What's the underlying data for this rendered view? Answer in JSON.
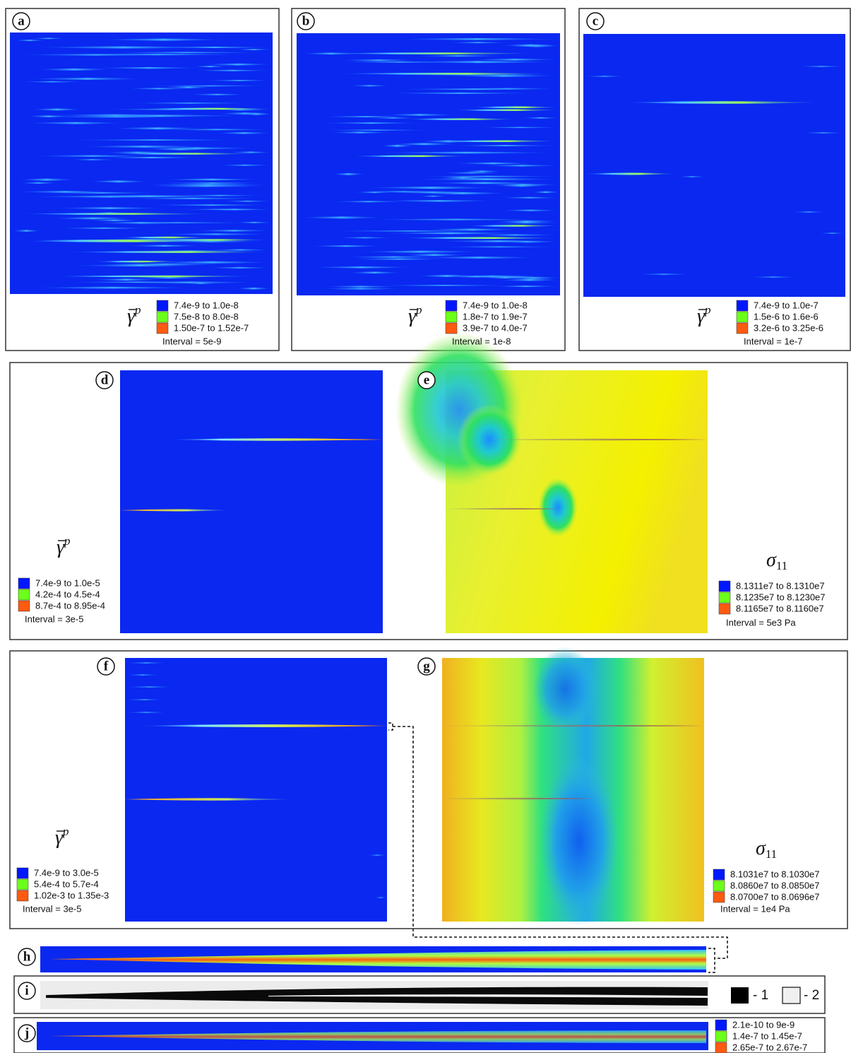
{
  "panels": [
    {
      "label": "a",
      "legend": {
        "symbol": "γ",
        "superscript": "p",
        "entries": [
          "7.4e-9 to 1.0e-8",
          "7.5e-8 to 8.0e-8",
          "1.50e-7 to 1.52e-7"
        ],
        "interval": "Interval = 5e-9"
      }
    },
    {
      "label": "b",
      "legend": {
        "symbol": "γ",
        "superscript": "p",
        "entries": [
          "7.4e-9 to 1.0e-8",
          "1.8e-7 to 1.9e-7",
          "3.9e-7 to 4.0e-7"
        ],
        "interval": "Interval = 1e-8"
      }
    },
    {
      "label": "c",
      "legend": {
        "symbol": "γ",
        "superscript": "p",
        "entries": [
          "7.4e-9 to 1.0e-7",
          "1.5e-6 to 1.6e-6",
          "3.2e-6 to 3.25e-6"
        ],
        "interval": "Interval = 1e-7"
      }
    },
    {
      "label": "d",
      "legend": {
        "symbol": "γ",
        "superscript": "p",
        "entries": [
          "7.4e-9 to 1.0e-5",
          "4.2e-4 to 4.5e-4",
          "8.7e-4 to 8.95e-4"
        ],
        "interval": "Interval = 3e-5"
      }
    },
    {
      "label": "e",
      "legend": {
        "symbol": "σ",
        "subscript": "11",
        "entries": [
          "8.1311e7 to 8.1310e7",
          "8.1235e7 to 8.1230e7",
          "8.1165e7 to 8.1160e7"
        ],
        "interval": "Interval = 5e3 Pa"
      }
    },
    {
      "label": "f",
      "legend": {
        "symbol": "γ",
        "superscript": "p",
        "entries": [
          "7.4e-9 to 3.0e-5",
          "5.4e-4 to 5.7e-4",
          "1.02e-3 to 1.35e-3"
        ],
        "interval": "Interval = 3e-5"
      }
    },
    {
      "label": "g",
      "legend": {
        "symbol": "σ",
        "subscript": "11",
        "entries": [
          "8.1031e7 to 8.1030e7",
          "8.0860e7 to 8.0850e7",
          "8.0700e7 to 8.0696e7"
        ],
        "interval": "Interval = 1e4 Pa"
      }
    },
    {
      "label": "h"
    },
    {
      "label": "i",
      "legend": {
        "entries": [
          "- 1",
          "- 2"
        ]
      }
    },
    {
      "label": "j",
      "legend": {
        "entries": [
          "2.1e-10 to 9e-9",
          "1.4e-7 to 1.45e-7",
          "2.65e-7 to 2.67e-7"
        ]
      }
    }
  ]
}
